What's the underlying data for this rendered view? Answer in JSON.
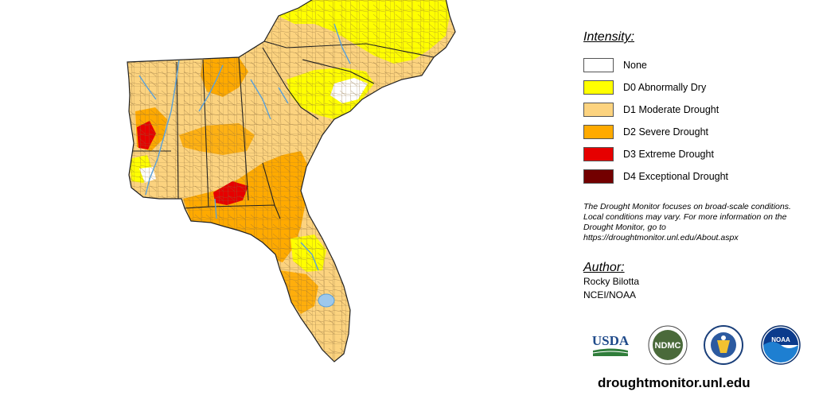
{
  "legend": {
    "title": "Intensity:",
    "items": [
      {
        "label": "None",
        "color": "#ffffff"
      },
      {
        "label": "D0 Abnormally Dry",
        "color": "#ffff00"
      },
      {
        "label": "D1 Moderate Drought",
        "color": "#fcd37f"
      },
      {
        "label": "D2 Severe Drought",
        "color": "#ffaa00"
      },
      {
        "label": "D3 Extreme Drought",
        "color": "#e60000"
      },
      {
        "label": "D4 Exceptional Drought",
        "color": "#730000"
      }
    ]
  },
  "disclaimer": "The Drought Monitor focuses on broad-scale conditions. Local conditions may vary. For more information on the Drought Monitor, go to https://droughtmonitor.unl.edu/About.aspx",
  "author": {
    "title": "Author:",
    "name": "Rocky Bilotta",
    "org": "NCEI/NOAA"
  },
  "logos": {
    "usda": "USDA",
    "ndmc": "NDMC",
    "noaa": "NOAA",
    "doc_icon": "department-of-commerce-seal-icon"
  },
  "site_url": "droughtmonitor.unl.edu",
  "colors": {
    "water": "#5aa0d8",
    "county_line": "#8a6a3a",
    "state_line": "#222222",
    "ocean": "#ffffff"
  }
}
